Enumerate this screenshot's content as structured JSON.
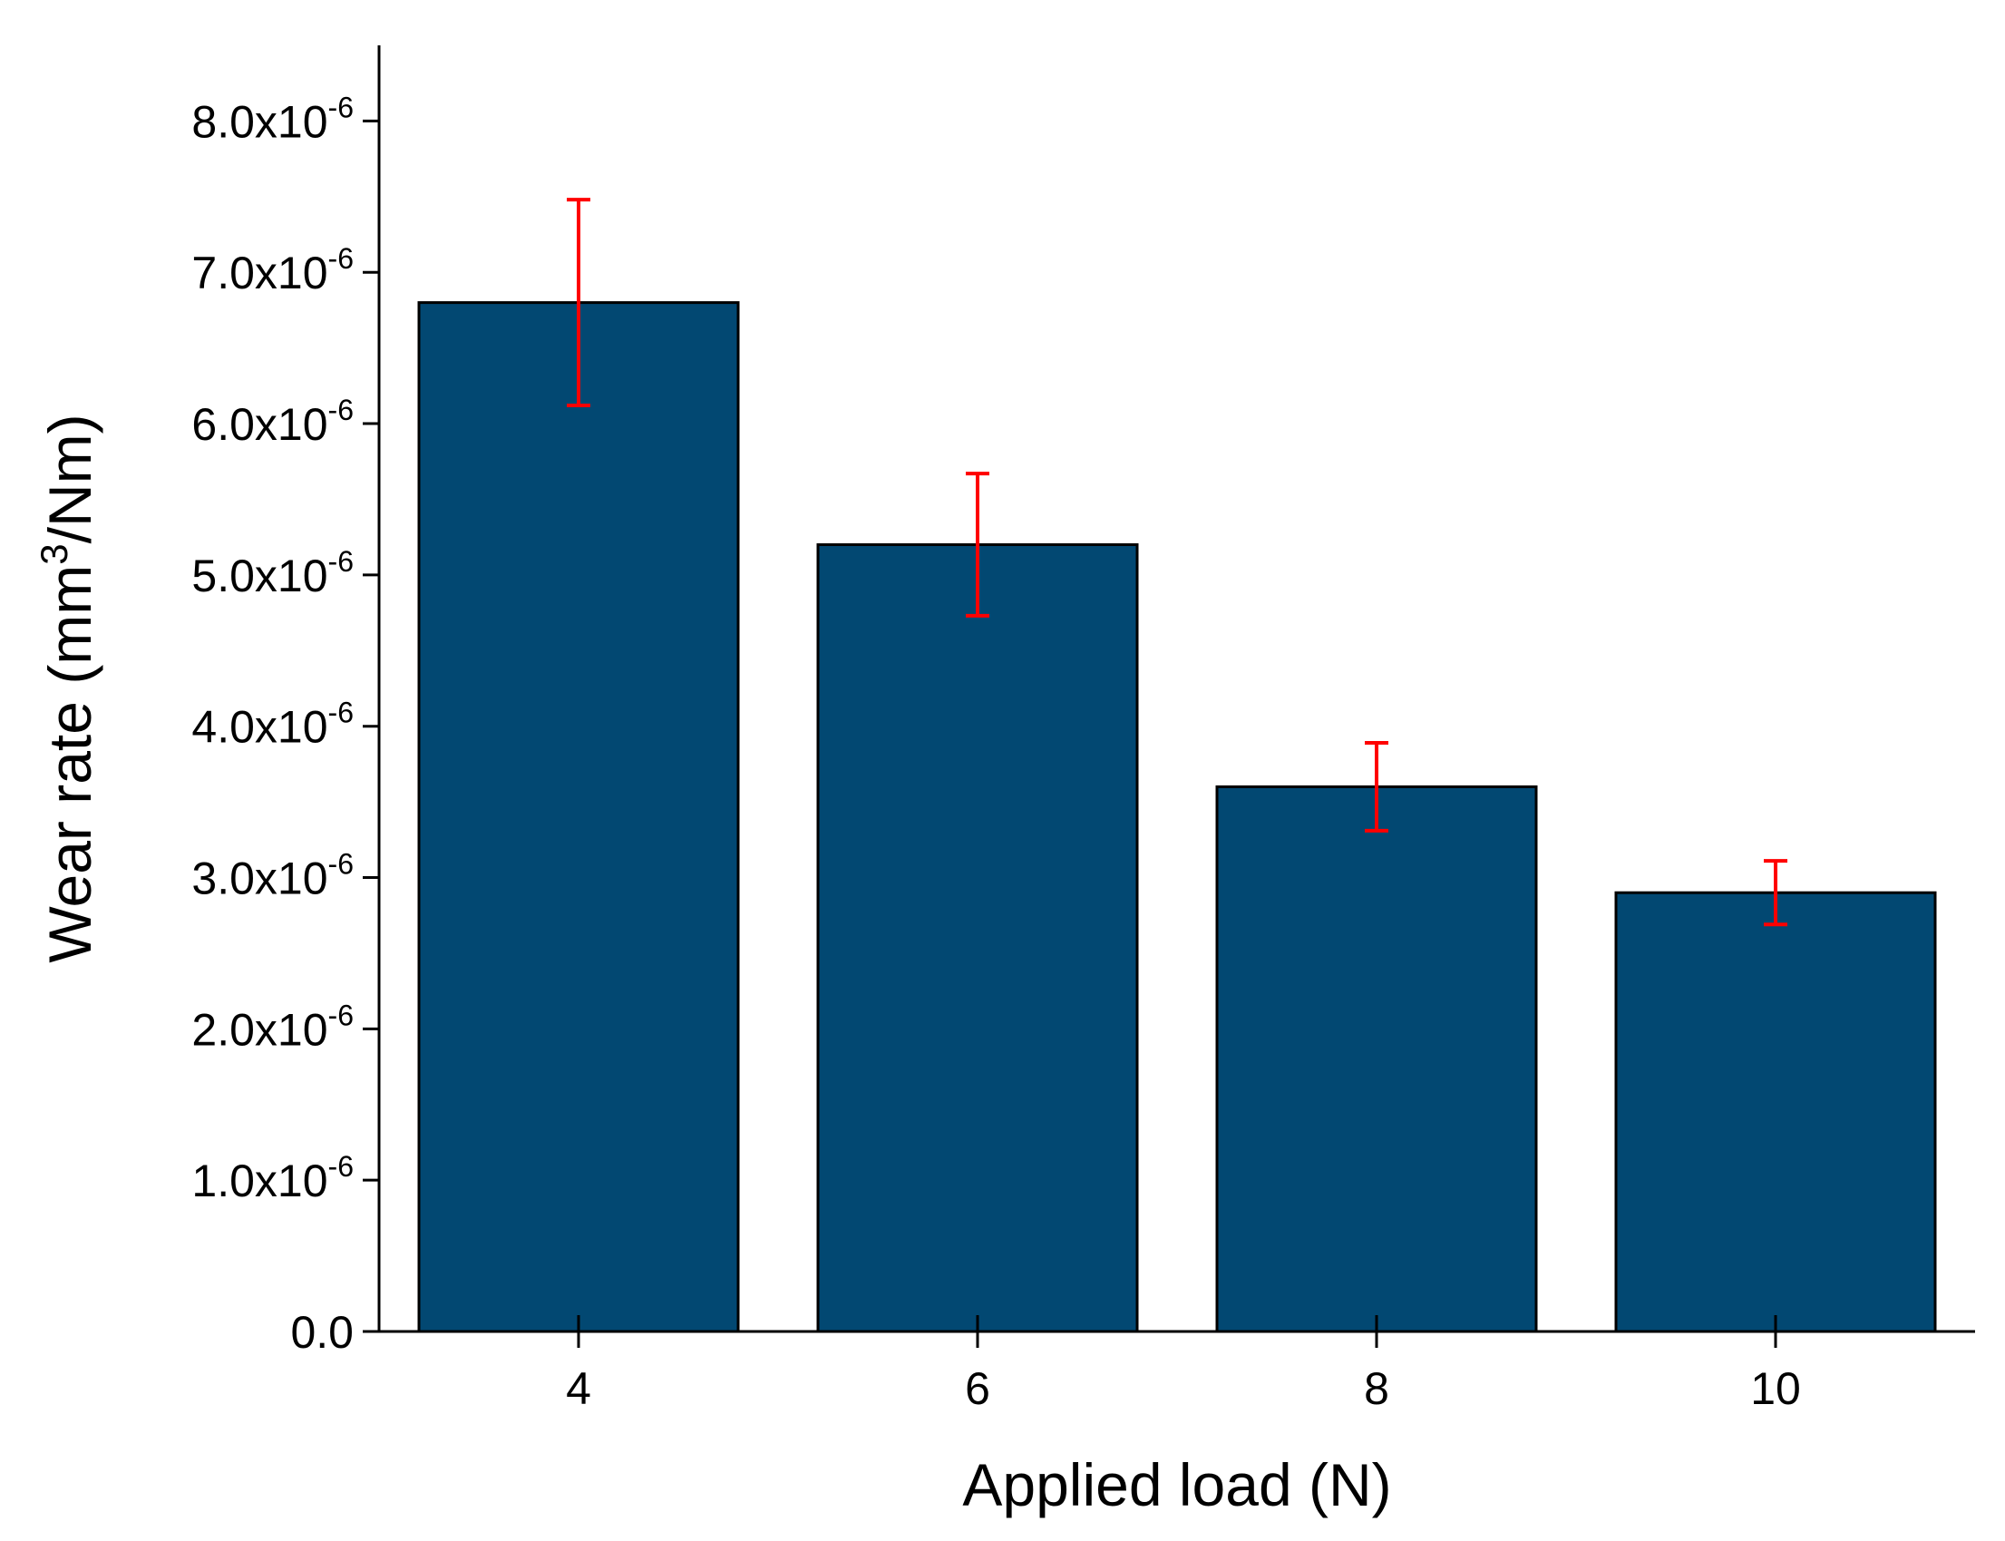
{
  "chart_data": {
    "type": "bar",
    "title": "",
    "categories": [
      "4",
      "6",
      "8",
      "10"
    ],
    "series": [
      {
        "name": "Wear rate",
        "values": [
          6.8e-06,
          5.2e-06,
          3.6e-06,
          2.9e-06
        ],
        "error_upper": [
          7.48e-06,
          5.67e-06,
          3.89e-06,
          3.11e-06
        ],
        "error_lower": [
          6.12e-06,
          4.73e-06,
          3.31e-06,
          2.69e-06
        ]
      }
    ],
    "xlabel": "Applied load (N)",
    "ylabel": {
      "before": "Wear rate (mm",
      "sup": "3",
      "after": "/Nm)"
    },
    "ylim": [
      0,
      8.5e-06
    ],
    "yticks": [
      {
        "value": 0,
        "mantissa": "0.0",
        "exponent": ""
      },
      {
        "value": 1e-06,
        "mantissa": "1.0x10",
        "exponent": "-6"
      },
      {
        "value": 2e-06,
        "mantissa": "2.0x10",
        "exponent": "-6"
      },
      {
        "value": 3e-06,
        "mantissa": "3.0x10",
        "exponent": "-6"
      },
      {
        "value": 4e-06,
        "mantissa": "4.0x10",
        "exponent": "-6"
      },
      {
        "value": 5e-06,
        "mantissa": "5.0x10",
        "exponent": "-6"
      },
      {
        "value": 6e-06,
        "mantissa": "6.0x10",
        "exponent": "-6"
      },
      {
        "value": 7e-06,
        "mantissa": "7.0x10",
        "exponent": "-6"
      },
      {
        "value": 8e-06,
        "mantissa": "8.0x10",
        "exponent": "-6"
      }
    ],
    "grid": false,
    "colors": {
      "bar": "#024872",
      "error_bar": "#ff0000"
    }
  }
}
